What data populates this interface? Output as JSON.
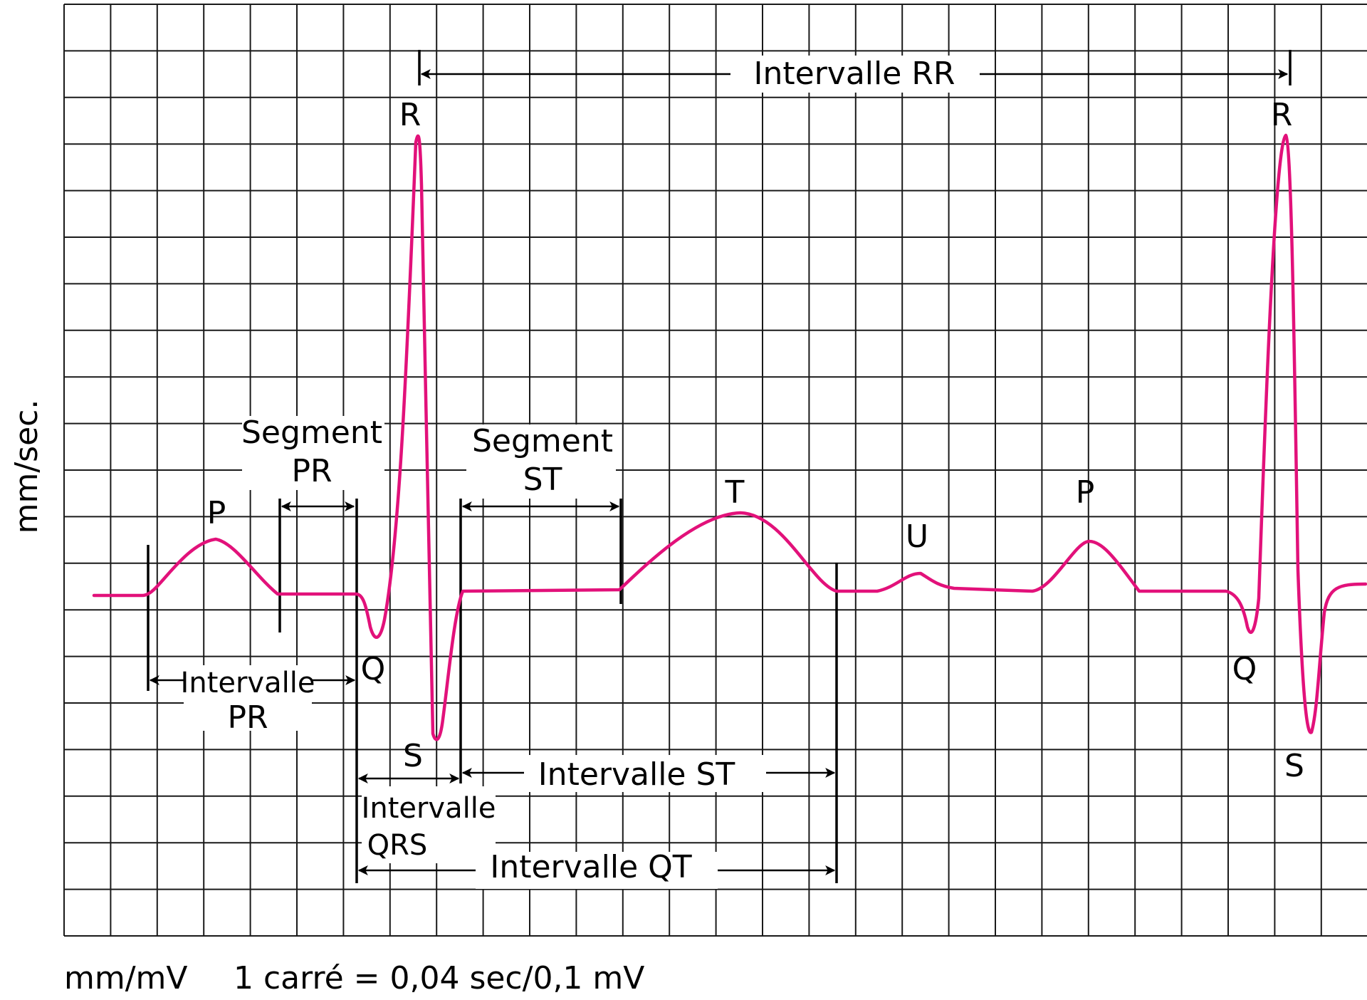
{
  "diagram": {
    "y_axis_label": "mm/sec.",
    "footer_unit": "mm/mV",
    "footer_scale": "1 carré = 0,04 sec/0,1 mV",
    "waves": {
      "p1": "P",
      "q1": "Q",
      "r1": "R",
      "s1": "S",
      "t": "T",
      "u": "U",
      "p2": "P",
      "q2": "Q",
      "r2": "R",
      "s2": "S"
    },
    "intervals": {
      "rr": "Intervalle RR",
      "st_interval": "Intervalle ST",
      "qt": "Intervalle QT",
      "pr_interval_line1": "Intervalle",
      "pr_interval_line2": "PR",
      "qrs_line1": "Intervalle",
      "qrs_line2": "QRS",
      "pr_segment_line1": "Segment",
      "pr_segment_line2": "PR",
      "st_segment_line1": "Segment",
      "st_segment_line2": "ST"
    },
    "colors": {
      "trace": "#e2117a",
      "grid": "#1a1a1a",
      "ink": "#000000",
      "background": "#ffffff"
    }
  }
}
